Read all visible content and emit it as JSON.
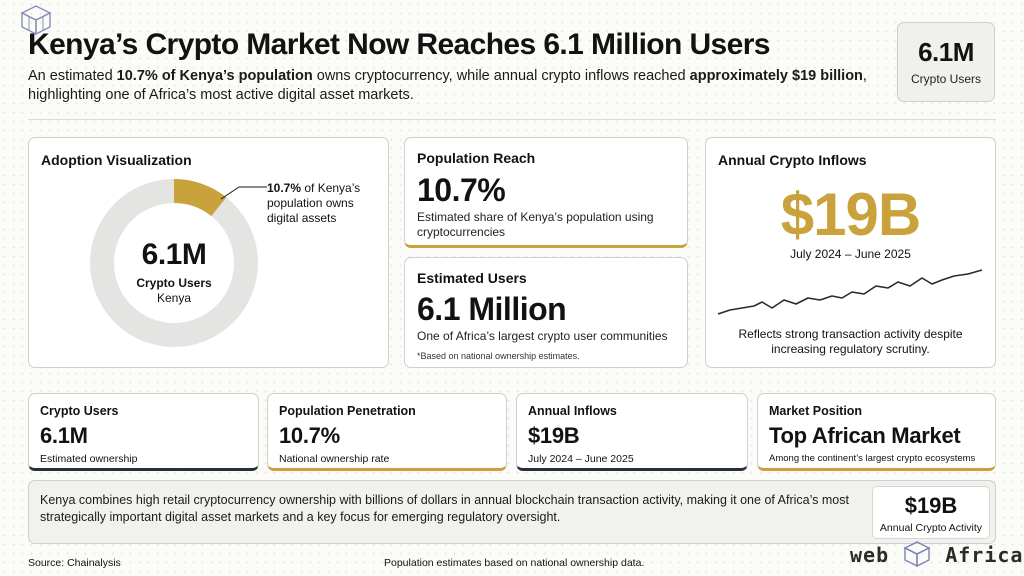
{
  "header": {
    "title": "Kenya’s Crypto Market Now Reaches 6.1 Million Users",
    "subtitle_pre": "An estimated ",
    "subtitle_b1": "10.7% of Kenya’s population",
    "subtitle_mid": " owns cryptocurrency, while annual crypto inflows reached ",
    "subtitle_b2": "approximately $19 billion",
    "subtitle_post": ", highlighting one of Africa’s most active digital asset markets.",
    "kpi_value": "6.1M",
    "kpi_label": "Crypto Users"
  },
  "adoption": {
    "title": "Adoption Visualization",
    "share_percent": 10.7,
    "center_value": "6.1M",
    "center_label": "Crypto Users",
    "center_sublabel": "Kenya",
    "annotation_bold": "10.7%",
    "annotation_rest": " of Kenya’s population owns digital assets"
  },
  "population_reach": {
    "title": "Population Reach",
    "value": "10.7%",
    "desc": "Estimated share of Kenya’s population using cryptocurrencies"
  },
  "estimated_users": {
    "title": "Estimated Users",
    "value": "6.1 Million",
    "desc": "One of Africa’s largest crypto user communities",
    "note": "*Based on national ownership estimates."
  },
  "inflows": {
    "title": "Annual Crypto Inflows",
    "value": "$19B",
    "range": "July 2024 – June 2025",
    "desc": "Reflects strong transaction activity despite increasing regulatory scrutiny."
  },
  "metrics": [
    {
      "title": "Crypto Users",
      "value": "6.1M",
      "sub": "Estimated ownership"
    },
    {
      "title": "Population Penetration",
      "value": "10.7%",
      "sub": "National ownership rate"
    },
    {
      "title": "Annual Inflows",
      "value": "$19B",
      "sub": "July 2024 – June 2025"
    },
    {
      "title": "Market Position",
      "value": "Top African Market",
      "sub": "Among the continent’s largest crypto ecosystems"
    }
  ],
  "summary": {
    "text": "Kenya combines high retail cryptocurrency ownership with billions of dollars in annual blockchain transaction activity, making it one of Africa’s most strategically important digital asset markets and a key focus for emerging regulatory oversight.",
    "box_value": "$19B",
    "box_label": "Annual Crypto Activity"
  },
  "footer": {
    "source": "Source: Chainalysis",
    "pop_note": "Population estimates based on national ownership data.",
    "brand_left": "web",
    "brand_right": "Africa"
  },
  "colors": {
    "accent_gold": "#c9a23c",
    "dark": "#25303d",
    "ring_gray": "#e4e4e2"
  }
}
